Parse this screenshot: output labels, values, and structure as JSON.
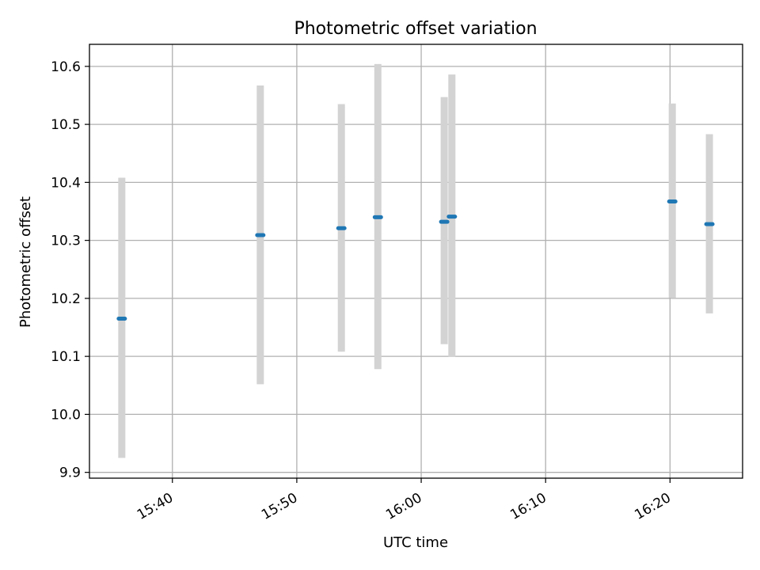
{
  "chart_data": {
    "type": "scatter",
    "title": "Photometric offset variation",
    "xlabel": "UTC time",
    "ylabel": "Photometric offset",
    "x_ticks": [
      "15:40",
      "15:50",
      "16:00",
      "16:10",
      "16:20"
    ],
    "y_ticks": [
      "9.9",
      "10.0",
      "10.1",
      "10.2",
      "10.3",
      "10.4",
      "10.5",
      "10.6"
    ],
    "xlim": [
      "15:33:20",
      "16:25:50"
    ],
    "ylim": [
      9.89,
      10.638
    ],
    "grid": true,
    "points": [
      {
        "x": "15:35:56",
        "y": 10.165,
        "ylow": 9.925,
        "yhigh": 10.408
      },
      {
        "x": "15:47:04",
        "y": 10.309,
        "ylow": 10.052,
        "yhigh": 10.567
      },
      {
        "x": "15:53:35",
        "y": 10.321,
        "ylow": 10.108,
        "yhigh": 10.535
      },
      {
        "x": "15:56:31",
        "y": 10.34,
        "ylow": 10.078,
        "yhigh": 10.604
      },
      {
        "x": "16:01:51",
        "y": 10.332,
        "ylow": 10.121,
        "yhigh": 10.547
      },
      {
        "x": "16:02:28",
        "y": 10.341,
        "ylow": 10.099,
        "yhigh": 10.586
      },
      {
        "x": "16:20:11",
        "y": 10.367,
        "ylow": 10.201,
        "yhigh": 10.536
      },
      {
        "x": "16:23:10",
        "y": 10.328,
        "ylow": 10.174,
        "yhigh": 10.483
      }
    ],
    "colors": {
      "point": "#1f77b4",
      "errorbar": "#d3d3d3",
      "grid": "#b0b0b0",
      "axes": "#000000"
    }
  }
}
